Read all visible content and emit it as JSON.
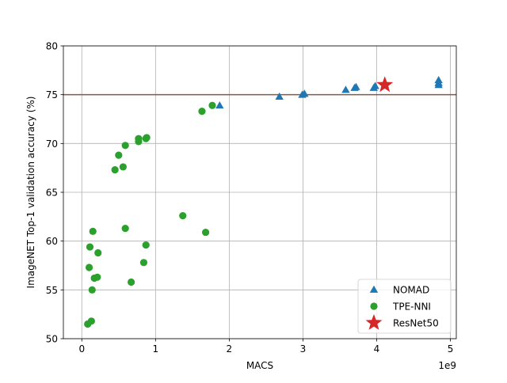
{
  "chart_data": {
    "type": "scatter",
    "xlabel": "MACS",
    "ylabel": "ImageNET Top-1 validation accuracy (%)",
    "x_offset_label": "1e9",
    "xlim": [
      -0.25,
      5.08
    ],
    "ylim": [
      50,
      80
    ],
    "xticks": [
      0,
      1,
      2,
      3,
      4,
      5
    ],
    "yticks": [
      50,
      55,
      60,
      65,
      70,
      75,
      80
    ],
    "grid": true,
    "legend_position": "lower-right",
    "reference_line": {
      "y": 75,
      "color": "#8c564b"
    },
    "series": [
      {
        "name": "NOMAD",
        "marker": "triangle",
        "color": "#1f77b4",
        "points": [
          [
            1.87,
            73.9
          ],
          [
            2.68,
            74.8
          ],
          [
            2.99,
            75.0
          ],
          [
            3.02,
            75.1
          ],
          [
            3.58,
            75.5
          ],
          [
            3.7,
            75.7
          ],
          [
            3.72,
            75.8
          ],
          [
            3.96,
            75.7
          ],
          [
            3.98,
            75.9
          ],
          [
            4.84,
            76.0
          ],
          [
            4.84,
            76.2
          ],
          [
            4.84,
            76.5
          ]
        ]
      },
      {
        "name": "TPE-NNI",
        "marker": "circle",
        "color": "#2ca02c",
        "points": [
          [
            0.08,
            51.5
          ],
          [
            0.13,
            51.8
          ],
          [
            0.1,
            57.3
          ],
          [
            0.11,
            59.4
          ],
          [
            0.14,
            55.0
          ],
          [
            0.15,
            61.0
          ],
          [
            0.17,
            56.2
          ],
          [
            0.21,
            56.3
          ],
          [
            0.22,
            58.8
          ],
          [
            0.45,
            67.3
          ],
          [
            0.5,
            68.8
          ],
          [
            0.56,
            67.6
          ],
          [
            0.59,
            69.8
          ],
          [
            0.59,
            61.3
          ],
          [
            0.67,
            55.8
          ],
          [
            0.77,
            70.2
          ],
          [
            0.77,
            70.5
          ],
          [
            0.84,
            57.8
          ],
          [
            0.87,
            70.5
          ],
          [
            0.88,
            70.6
          ],
          [
            0.87,
            59.6
          ],
          [
            1.37,
            62.6
          ],
          [
            1.63,
            73.3
          ],
          [
            1.68,
            60.9
          ],
          [
            1.77,
            73.9
          ]
        ]
      },
      {
        "name": "ResNet50",
        "marker": "star",
        "color": "#d62728",
        "points": [
          [
            4.11,
            76.0
          ]
        ]
      }
    ]
  }
}
